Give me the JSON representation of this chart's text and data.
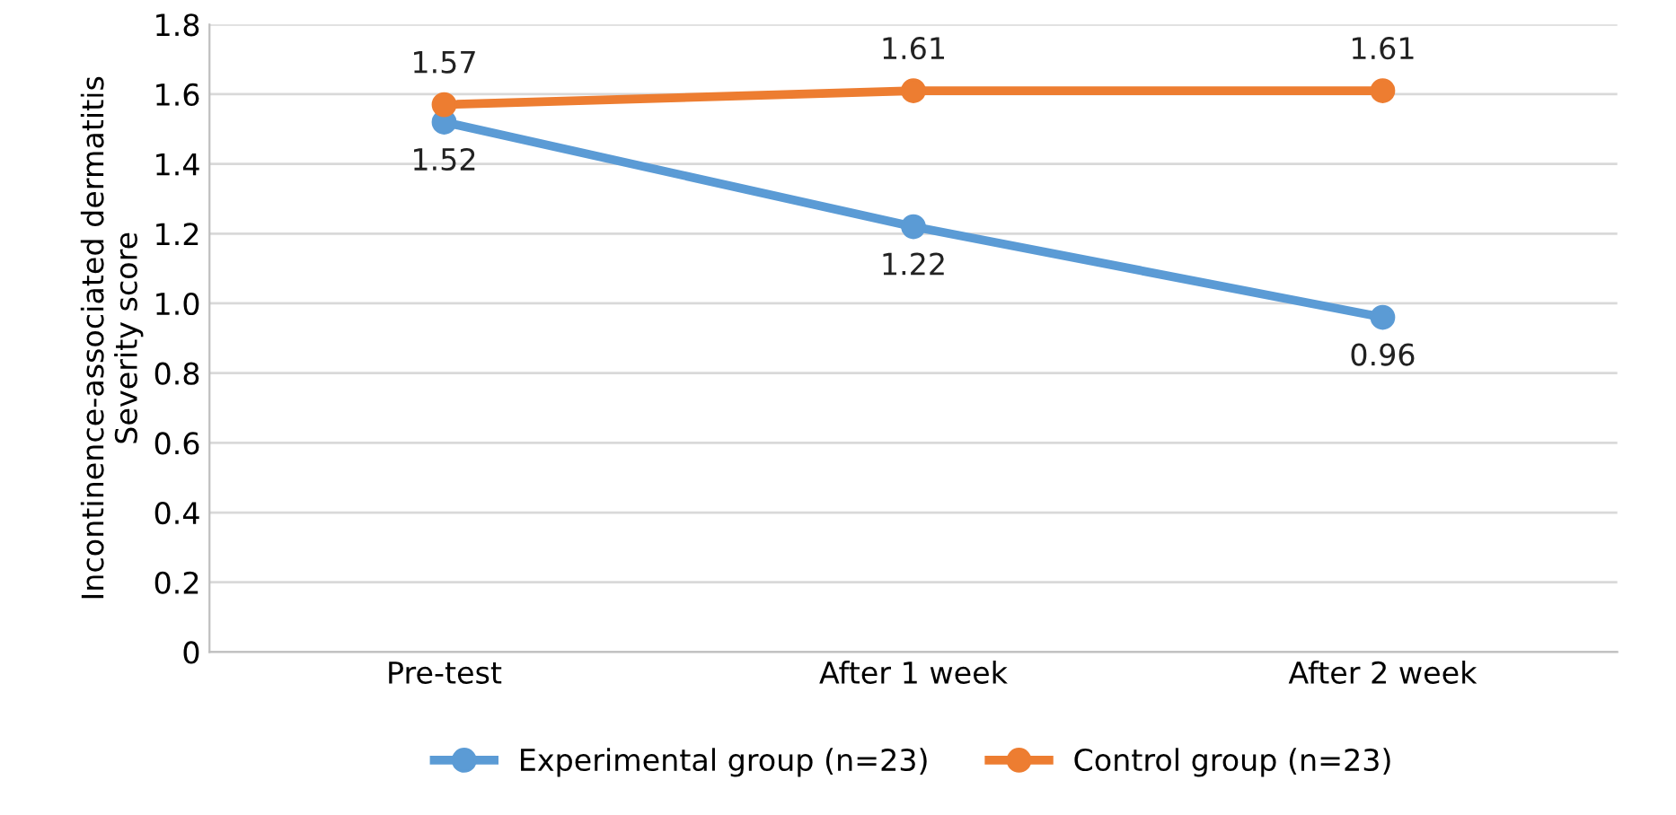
{
  "chart_data": {
    "type": "line",
    "ylabel": "Incontinence-associated dermatitis\nSeverity score",
    "categories": [
      "Pre-test",
      "After 1 week",
      "After 2 week"
    ],
    "series": [
      {
        "name": "Experimental group (n=23)",
        "color": "#5b9bd5",
        "values": [
          1.52,
          1.22,
          0.96
        ]
      },
      {
        "name": "Control group (n=23)",
        "color": "#ed7d31",
        "values": [
          1.57,
          1.61,
          1.61
        ]
      }
    ],
    "ylim": [
      0,
      1.8
    ],
    "yticks": [
      0,
      0.2,
      0.4,
      0.6,
      0.8,
      {
        "value": 1.0,
        "label": "1.0"
      },
      1.2,
      1.4,
      1.6,
      1.8
    ],
    "grid": "y",
    "legend": "bottom",
    "marker": "circle",
    "line_style": "solid",
    "data_labels": true
  }
}
